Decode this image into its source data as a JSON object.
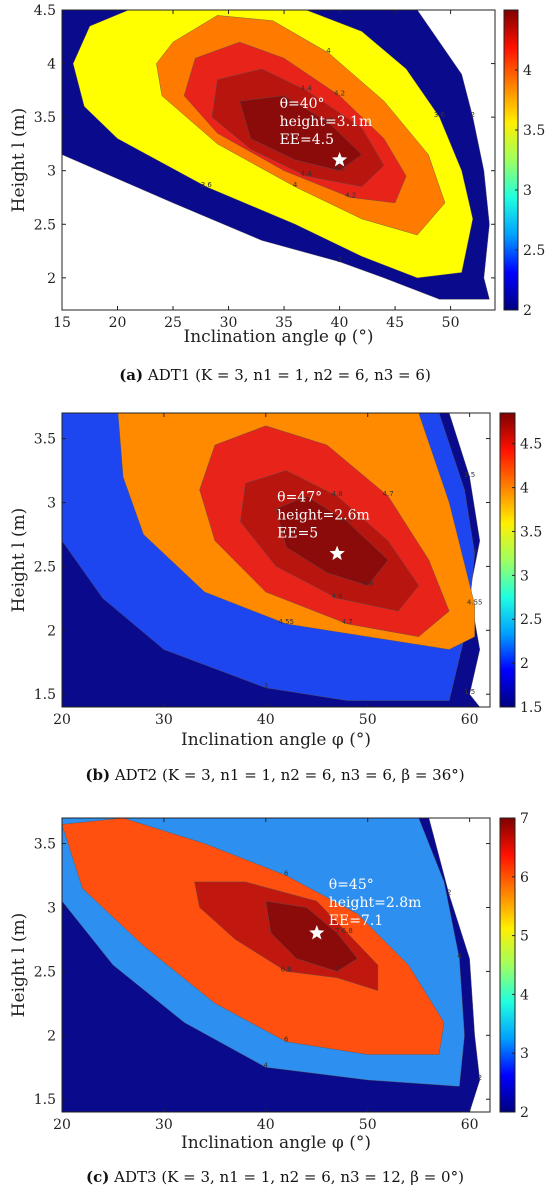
{
  "chart_data": [
    {
      "type": "contour",
      "caption_prefix": "(a)",
      "caption": "ADT1 (K = 3, n1 = 1, n2 = 6, n3 = 6)",
      "xlabel": "Inclination angle φ (°)",
      "ylabel": "Height l (m)",
      "xlim": [
        15,
        54
      ],
      "ylim": [
        1.7,
        4.5
      ],
      "xticks": [
        "15",
        "20",
        "25",
        "30",
        "35",
        "40",
        "45",
        "50"
      ],
      "xtick_values": [
        15,
        20,
        25,
        30,
        35,
        40,
        45,
        50
      ],
      "yticks": [
        "2",
        "2.5",
        "3",
        "3.5",
        "4",
        "4.5"
      ],
      "ytick_values": [
        2,
        2.5,
        3,
        3.5,
        4,
        4.5
      ],
      "colorbar_ticks": [
        "2",
        "2.5",
        "3",
        "3.5",
        "4"
      ],
      "colorbar_values": [
        2,
        2.5,
        3,
        3.5,
        4
      ],
      "colorbar_range": [
        2,
        4.5
      ],
      "levels": [
        {
          "value": 2,
          "color": "#0a0a8c"
        },
        {
          "value": 3.6,
          "color": "#ffff00"
        },
        {
          "value": 4.0,
          "color": "#ff7b00"
        },
        {
          "value": 4.2,
          "color": "#e8231a"
        },
        {
          "value": 4.4,
          "color": "#b8150f"
        },
        {
          "value": 4.5,
          "color": "#8b0a0a"
        }
      ],
      "contour_labels": [
        "2",
        "3.6",
        "4",
        "4.2",
        "4.4",
        "4.5"
      ],
      "optimum": {
        "x": 40,
        "y": 3.1
      },
      "annotation": [
        "θ=40°",
        "height=3.1m",
        "EE=4.5"
      ]
    },
    {
      "type": "contour",
      "caption_prefix": "(b)",
      "caption": "ADT2 (K = 3, n1 = 1, n2 = 6, n3 = 6, β = 36°)",
      "xlabel": "Inclination angle φ (°)",
      "ylabel": "Height l (m)",
      "xlim": [
        20,
        62
      ],
      "ylim": [
        1.4,
        3.7
      ],
      "xticks": [
        "20",
        "30",
        "40",
        "50",
        "60"
      ],
      "xtick_values": [
        20,
        30,
        40,
        50,
        60
      ],
      "yticks": [
        "1.5",
        "2",
        "2.5",
        "3",
        "3.5"
      ],
      "ytick_values": [
        1.5,
        2,
        2.5,
        3,
        3.5
      ],
      "colorbar_ticks": [
        "1.5",
        "2",
        "2.5",
        "3",
        "3.5",
        "4",
        "4.5"
      ],
      "colorbar_values": [
        1.5,
        2,
        2.5,
        3,
        3.5,
        4,
        4.5
      ],
      "colorbar_range": [
        1.5,
        4.85
      ],
      "levels": [
        {
          "value": 1.5,
          "color": "#0a0a8c"
        },
        {
          "value": 3.0,
          "color": "#1e46f0"
        },
        {
          "value": 4.55,
          "color": "#ff8a00"
        },
        {
          "value": 4.7,
          "color": "#e8231a"
        },
        {
          "value": 4.8,
          "color": "#b8150f"
        },
        {
          "value": 4.85,
          "color": "#8b0a0a"
        }
      ],
      "contour_labels": [
        "1.5",
        "3",
        "4.55",
        "4.7",
        "4.8"
      ],
      "optimum": {
        "x": 47,
        "y": 2.6
      },
      "annotation": [
        "θ=47°",
        "height=2.6m",
        "EE=5"
      ]
    },
    {
      "type": "contour",
      "caption_prefix": "(c)",
      "caption": "ADT3 (K = 3, n1 = 1, n2 = 6, n3 = 12, β = 0°)",
      "xlabel": "Inclination angle φ (°)",
      "ylabel": "Height l (m)",
      "xlim": [
        20,
        62
      ],
      "ylim": [
        1.4,
        3.7
      ],
      "xticks": [
        "20",
        "30",
        "40",
        "50",
        "60"
      ],
      "xtick_values": [
        20,
        30,
        40,
        50,
        60
      ],
      "yticks": [
        "1.5",
        "2",
        "2.5",
        "3",
        "3.5"
      ],
      "ytick_values": [
        1.5,
        2,
        2.5,
        3,
        3.5
      ],
      "colorbar_ticks": [
        "2",
        "3",
        "4",
        "5",
        "6",
        "7"
      ],
      "colorbar_values": [
        2,
        3,
        4,
        5,
        6,
        7
      ],
      "colorbar_range": [
        2,
        7
      ],
      "levels": [
        {
          "value": 2,
          "color": "#0a0a8c"
        },
        {
          "value": 4,
          "color": "#2d8ff0"
        },
        {
          "value": 6,
          "color": "#ff5010"
        },
        {
          "value": 6.8,
          "color": "#c0180e"
        },
        {
          "value": 7,
          "color": "#8b0a0a"
        }
      ],
      "contour_labels": [
        "2",
        "4",
        "6",
        "6.8",
        "7"
      ],
      "optimum": {
        "x": 45,
        "y": 2.8
      },
      "annotation": [
        "θ=45°",
        "height=2.8m",
        "EE=7.1"
      ]
    }
  ]
}
